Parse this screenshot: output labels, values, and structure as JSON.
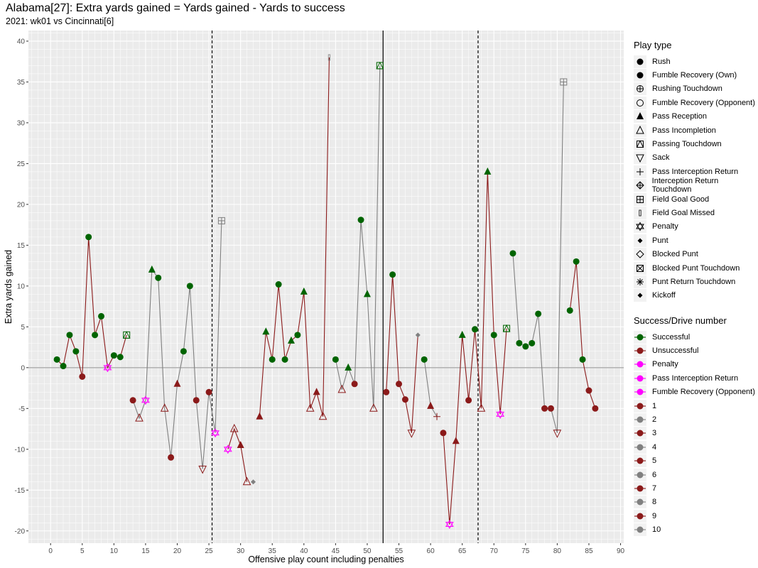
{
  "header": {
    "title": "Alabama[27]: Extra yards gained = Yards gained - Yards to success",
    "subtitle": "2021: wk01 vs Cincinnati[6]"
  },
  "colors": {
    "successful": "#006400",
    "unsuccessful": "#8B1A1A",
    "penalty": "#FF00FF",
    "drive_odd": "#8B1A1A",
    "drive_even": "#808080",
    "panel_bg": "#EBEBEB",
    "grid": "#FFFFFF"
  },
  "legend_play_type": {
    "title": "Play type",
    "items": [
      {
        "label": "Rush",
        "shape": "circle-filled"
      },
      {
        "label": "Fumble Recovery (Own)",
        "shape": "circle-filled"
      },
      {
        "label": "Rushing Touchdown",
        "shape": "circle-plus"
      },
      {
        "label": "Fumble Recovery (Opponent)",
        "shape": "circle-open"
      },
      {
        "label": "Pass Reception",
        "shape": "triangle-filled"
      },
      {
        "label": "Pass Incompletion",
        "shape": "triangle-open"
      },
      {
        "label": "Passing Touchdown",
        "shape": "square-triangle"
      },
      {
        "label": "Sack",
        "shape": "triangle-down-open"
      },
      {
        "label": "Pass Interception Return",
        "shape": "plus"
      },
      {
        "label": "Interception Return Touchdown",
        "shape": "diamond-plus"
      },
      {
        "label": "Field Goal Good",
        "shape": "square-plus"
      },
      {
        "label": "Field Goal Missed",
        "shape": "bar"
      },
      {
        "label": "Penalty",
        "shape": "star-of-david"
      },
      {
        "label": "Punt",
        "shape": "diamond-filled"
      },
      {
        "label": "Blocked Punt",
        "shape": "diamond-open"
      },
      {
        "label": "Blocked Punt Touchdown",
        "shape": "square-x"
      },
      {
        "label": "Punt Return Touchdown",
        "shape": "asterisk"
      },
      {
        "label": "Kickoff",
        "shape": "diamond-filled"
      }
    ]
  },
  "legend_success": {
    "title": "Success/Drive number",
    "items": [
      {
        "label": "Successful",
        "color": "#006400"
      },
      {
        "label": "Unsuccessful",
        "color": "#8B1A1A"
      },
      {
        "label": "Penalty",
        "color": "#FF00FF"
      },
      {
        "label": "Pass Interception Return",
        "color": "#FF00FF"
      },
      {
        "label": "Fumble Recovery (Opponent)",
        "color": "#FF00FF"
      },
      {
        "label": "1",
        "color": "#8B1A1A"
      },
      {
        "label": "2",
        "color": "#808080"
      },
      {
        "label": "3",
        "color": "#8B1A1A"
      },
      {
        "label": "4",
        "color": "#808080"
      },
      {
        "label": "5",
        "color": "#8B1A1A"
      },
      {
        "label": "6",
        "color": "#808080"
      },
      {
        "label": "7",
        "color": "#8B1A1A"
      },
      {
        "label": "8",
        "color": "#808080"
      },
      {
        "label": "9",
        "color": "#8B1A1A"
      },
      {
        "label": "10",
        "color": "#808080"
      }
    ]
  },
  "chart_data": {
    "type": "line",
    "xlabel": "Offensive play count including penalties",
    "ylabel": "Extra yards gained",
    "xlim": [
      -3.5,
      90.5
    ],
    "ylim": [
      -21.5,
      41.3
    ],
    "xticks": [
      0,
      5,
      10,
      15,
      20,
      25,
      30,
      35,
      40,
      45,
      50,
      55,
      60,
      65,
      70,
      75,
      80,
      85,
      90
    ],
    "yticks": [
      -20,
      -15,
      -10,
      -5,
      0,
      5,
      10,
      15,
      20,
      25,
      30,
      35,
      40
    ],
    "hline": 0,
    "vlines": [
      {
        "x": 25.5,
        "style": "dashed"
      },
      {
        "x": 52.5,
        "style": "solid"
      },
      {
        "x": 67.5,
        "style": "dashed"
      }
    ],
    "drives": [
      {
        "drive": 1,
        "points": [
          {
            "x": 1,
            "y": 1,
            "type": "Rush",
            "result": "Successful"
          },
          {
            "x": 2,
            "y": 0.2,
            "type": "Rush",
            "result": "Successful"
          },
          {
            "x": 3,
            "y": 4,
            "type": "Rush",
            "result": "Successful"
          },
          {
            "x": 4,
            "y": 2,
            "type": "Rush",
            "result": "Successful"
          },
          {
            "x": 5,
            "y": -1.1,
            "type": "Rush",
            "result": "Unsuccessful"
          },
          {
            "x": 6,
            "y": 16,
            "type": "Rush",
            "result": "Successful"
          },
          {
            "x": 7,
            "y": 4,
            "type": "Rush",
            "result": "Successful"
          },
          {
            "x": 8,
            "y": 6.3,
            "type": "Rush",
            "result": "Successful"
          },
          {
            "x": 9,
            "y": 0,
            "type": "Penalty",
            "result": "Penalty"
          },
          {
            "x": 10,
            "y": 1.5,
            "type": "Rush",
            "result": "Successful"
          },
          {
            "x": 11,
            "y": 1.3,
            "type": "Rush",
            "result": "Successful"
          },
          {
            "x": 12,
            "y": 4,
            "type": "Passing Touchdown",
            "result": "Successful"
          }
        ]
      },
      {
        "drive": 2,
        "points": [
          {
            "x": 13,
            "y": -4,
            "type": "Rush",
            "result": "Unsuccessful"
          },
          {
            "x": 14,
            "y": -6.2,
            "type": "Pass Incompletion",
            "result": "Unsuccessful"
          },
          {
            "x": 15,
            "y": -4,
            "type": "Penalty",
            "result": "Penalty"
          },
          {
            "x": 16,
            "y": 12,
            "type": "Pass Reception",
            "result": "Successful"
          },
          {
            "x": 17,
            "y": 11,
            "type": "Rush",
            "result": "Successful"
          },
          {
            "x": 18,
            "y": -5,
            "type": "Pass Incompletion",
            "result": "Unsuccessful"
          },
          {
            "x": 19,
            "y": -11,
            "type": "Rush",
            "result": "Unsuccessful"
          },
          {
            "x": 20,
            "y": -2,
            "type": "Pass Reception",
            "result": "Unsuccessful"
          },
          {
            "x": 21,
            "y": 2,
            "type": "Rush",
            "result": "Successful"
          },
          {
            "x": 22,
            "y": 10,
            "type": "Rush",
            "result": "Successful"
          },
          {
            "x": 23,
            "y": -4,
            "type": "Rush",
            "result": "Unsuccessful"
          },
          {
            "x": 24,
            "y": -12.4,
            "type": "Sack",
            "result": "Unsuccessful"
          },
          {
            "x": 25,
            "y": -3,
            "type": "Rush",
            "result": "Unsuccessful"
          },
          {
            "x": 26,
            "y": -8,
            "type": "Penalty",
            "result": "Penalty"
          },
          {
            "x": 27,
            "y": 18,
            "type": "Field Goal Good",
            "result": "Unsuccessful"
          }
        ]
      },
      {
        "drive": 3,
        "points": [
          {
            "x": 28,
            "y": -10,
            "type": "Penalty",
            "result": "Penalty"
          },
          {
            "x": 29,
            "y": -7.5,
            "type": "Pass Incompletion",
            "result": "Unsuccessful"
          },
          {
            "x": 30,
            "y": -9.5,
            "type": "Pass Reception",
            "result": "Unsuccessful"
          },
          {
            "x": 31,
            "y": -14,
            "type": "Pass Incompletion",
            "result": "Unsuccessful"
          }
        ]
      },
      {
        "drive": 4,
        "points": [
          {
            "x": 32,
            "y": -14,
            "type": "Punt",
            "result": "Unsuccessful"
          }
        ]
      },
      {
        "drive": 5,
        "points": [
          {
            "x": 33,
            "y": -6,
            "type": "Pass Reception",
            "result": "Unsuccessful"
          },
          {
            "x": 34,
            "y": 4.4,
            "type": "Pass Reception",
            "result": "Successful"
          },
          {
            "x": 35,
            "y": 1,
            "type": "Rush",
            "result": "Successful"
          },
          {
            "x": 36,
            "y": 10.2,
            "type": "Rush",
            "result": "Successful"
          },
          {
            "x": 37,
            "y": 1,
            "type": "Rush",
            "result": "Successful"
          },
          {
            "x": 38,
            "y": 3.3,
            "type": "Pass Reception",
            "result": "Successful"
          },
          {
            "x": 39,
            "y": 4,
            "type": "Rush",
            "result": "Successful"
          },
          {
            "x": 40,
            "y": 9.3,
            "type": "Pass Reception",
            "result": "Successful"
          },
          {
            "x": 41,
            "y": -5,
            "type": "Pass Incompletion",
            "result": "Unsuccessful"
          },
          {
            "x": 42,
            "y": -3,
            "type": "Pass Reception",
            "result": "Unsuccessful"
          },
          {
            "x": 43,
            "y": -6,
            "type": "Pass Incompletion",
            "result": "Unsuccessful"
          },
          {
            "x": 44,
            "y": 38,
            "type": "Field Goal Missed",
            "result": "Unsuccessful"
          }
        ]
      },
      {
        "drive": 6,
        "points": [
          {
            "x": 45,
            "y": 1,
            "type": "Rush",
            "result": "Successful"
          },
          {
            "x": 46,
            "y": -2.7,
            "type": "Pass Incompletion",
            "result": "Unsuccessful"
          },
          {
            "x": 47,
            "y": 0,
            "type": "Pass Reception",
            "result": "Successful"
          },
          {
            "x": 48,
            "y": -2,
            "type": "Rush",
            "result": "Unsuccessful"
          },
          {
            "x": 49,
            "y": 18.1,
            "type": "Rush",
            "result": "Successful"
          },
          {
            "x": 50,
            "y": 9,
            "type": "Pass Reception",
            "result": "Successful"
          },
          {
            "x": 51,
            "y": -5,
            "type": "Pass Incompletion",
            "result": "Unsuccessful"
          },
          {
            "x": 52,
            "y": 37,
            "type": "Passing Touchdown",
            "result": "Successful"
          }
        ]
      },
      {
        "drive": 7,
        "points": [
          {
            "x": 53,
            "y": -3,
            "type": "Rush",
            "result": "Unsuccessful"
          },
          {
            "x": 54,
            "y": 11.4,
            "type": "Rush",
            "result": "Successful"
          },
          {
            "x": 55,
            "y": -2,
            "type": "Rush",
            "result": "Unsuccessful"
          },
          {
            "x": 56,
            "y": -3.9,
            "type": "Rush",
            "result": "Unsuccessful"
          },
          {
            "x": 57,
            "y": -8,
            "type": "Sack",
            "result": "Unsuccessful"
          },
          {
            "x": 58,
            "y": 4,
            "type": "Punt",
            "result": "Unsuccessful"
          }
        ]
      },
      {
        "drive": 8,
        "points": [
          {
            "x": 59,
            "y": 1,
            "type": "Rush",
            "result": "Successful"
          },
          {
            "x": 60,
            "y": -4.7,
            "type": "Pass Reception",
            "result": "Unsuccessful"
          },
          {
            "x": 61,
            "y": -6,
            "type": "Pass Interception Return",
            "result": "Unsuccessful"
          }
        ]
      },
      {
        "drive": 9,
        "points": [
          {
            "x": 62,
            "y": -8,
            "type": "Rush",
            "result": "Unsuccessful"
          },
          {
            "x": 63,
            "y": -19.2,
            "type": "Penalty",
            "result": "Penalty"
          },
          {
            "x": 64,
            "y": -9,
            "type": "Pass Reception",
            "result": "Unsuccessful"
          },
          {
            "x": 65,
            "y": 4,
            "type": "Pass Reception",
            "result": "Successful"
          },
          {
            "x": 66,
            "y": -4,
            "type": "Rush",
            "result": "Unsuccessful"
          },
          {
            "x": 67,
            "y": 4.7,
            "type": "Rush",
            "result": "Successful"
          },
          {
            "x": 68,
            "y": -5,
            "type": "Pass Incompletion",
            "result": "Unsuccessful"
          },
          {
            "x": 69,
            "y": 24,
            "type": "Pass Reception",
            "result": "Successful"
          },
          {
            "x": 70,
            "y": 4,
            "type": "Rush",
            "result": "Successful"
          },
          {
            "x": 71,
            "y": -5.7,
            "type": "Penalty",
            "result": "Penalty"
          },
          {
            "x": 72,
            "y": 4.8,
            "type": "Passing Touchdown",
            "result": "Successful"
          }
        ]
      },
      {
        "drive": 10,
        "points": [
          {
            "x": 73,
            "y": 14,
            "type": "Rush",
            "result": "Successful"
          },
          {
            "x": 74,
            "y": 3,
            "type": "Rush",
            "result": "Successful"
          },
          {
            "x": 75,
            "y": 2.6,
            "type": "Rush",
            "result": "Successful"
          },
          {
            "x": 76,
            "y": 3,
            "type": "Rush",
            "result": "Successful"
          },
          {
            "x": 77,
            "y": 6.6,
            "type": "Rush",
            "result": "Successful"
          },
          {
            "x": 78,
            "y": -5,
            "type": "Rush",
            "result": "Unsuccessful"
          },
          {
            "x": 79,
            "y": -5,
            "type": "Rush",
            "result": "Unsuccessful"
          },
          {
            "x": 80,
            "y": -8,
            "type": "Sack",
            "result": "Unsuccessful"
          },
          {
            "x": 81,
            "y": 35,
            "type": "Field Goal Good",
            "result": "Unsuccessful"
          }
        ]
      },
      {
        "drive": 11,
        "points": [
          {
            "x": 82,
            "y": 7,
            "type": "Rush",
            "result": "Successful"
          },
          {
            "x": 83,
            "y": 13,
            "type": "Rush",
            "result": "Successful"
          },
          {
            "x": 84,
            "y": 1,
            "type": "Rush",
            "result": "Successful"
          },
          {
            "x": 85,
            "y": -2.8,
            "type": "Rush",
            "result": "Unsuccessful"
          },
          {
            "x": 86,
            "y": -5,
            "type": "Rush",
            "result": "Unsuccessful"
          }
        ]
      }
    ]
  }
}
